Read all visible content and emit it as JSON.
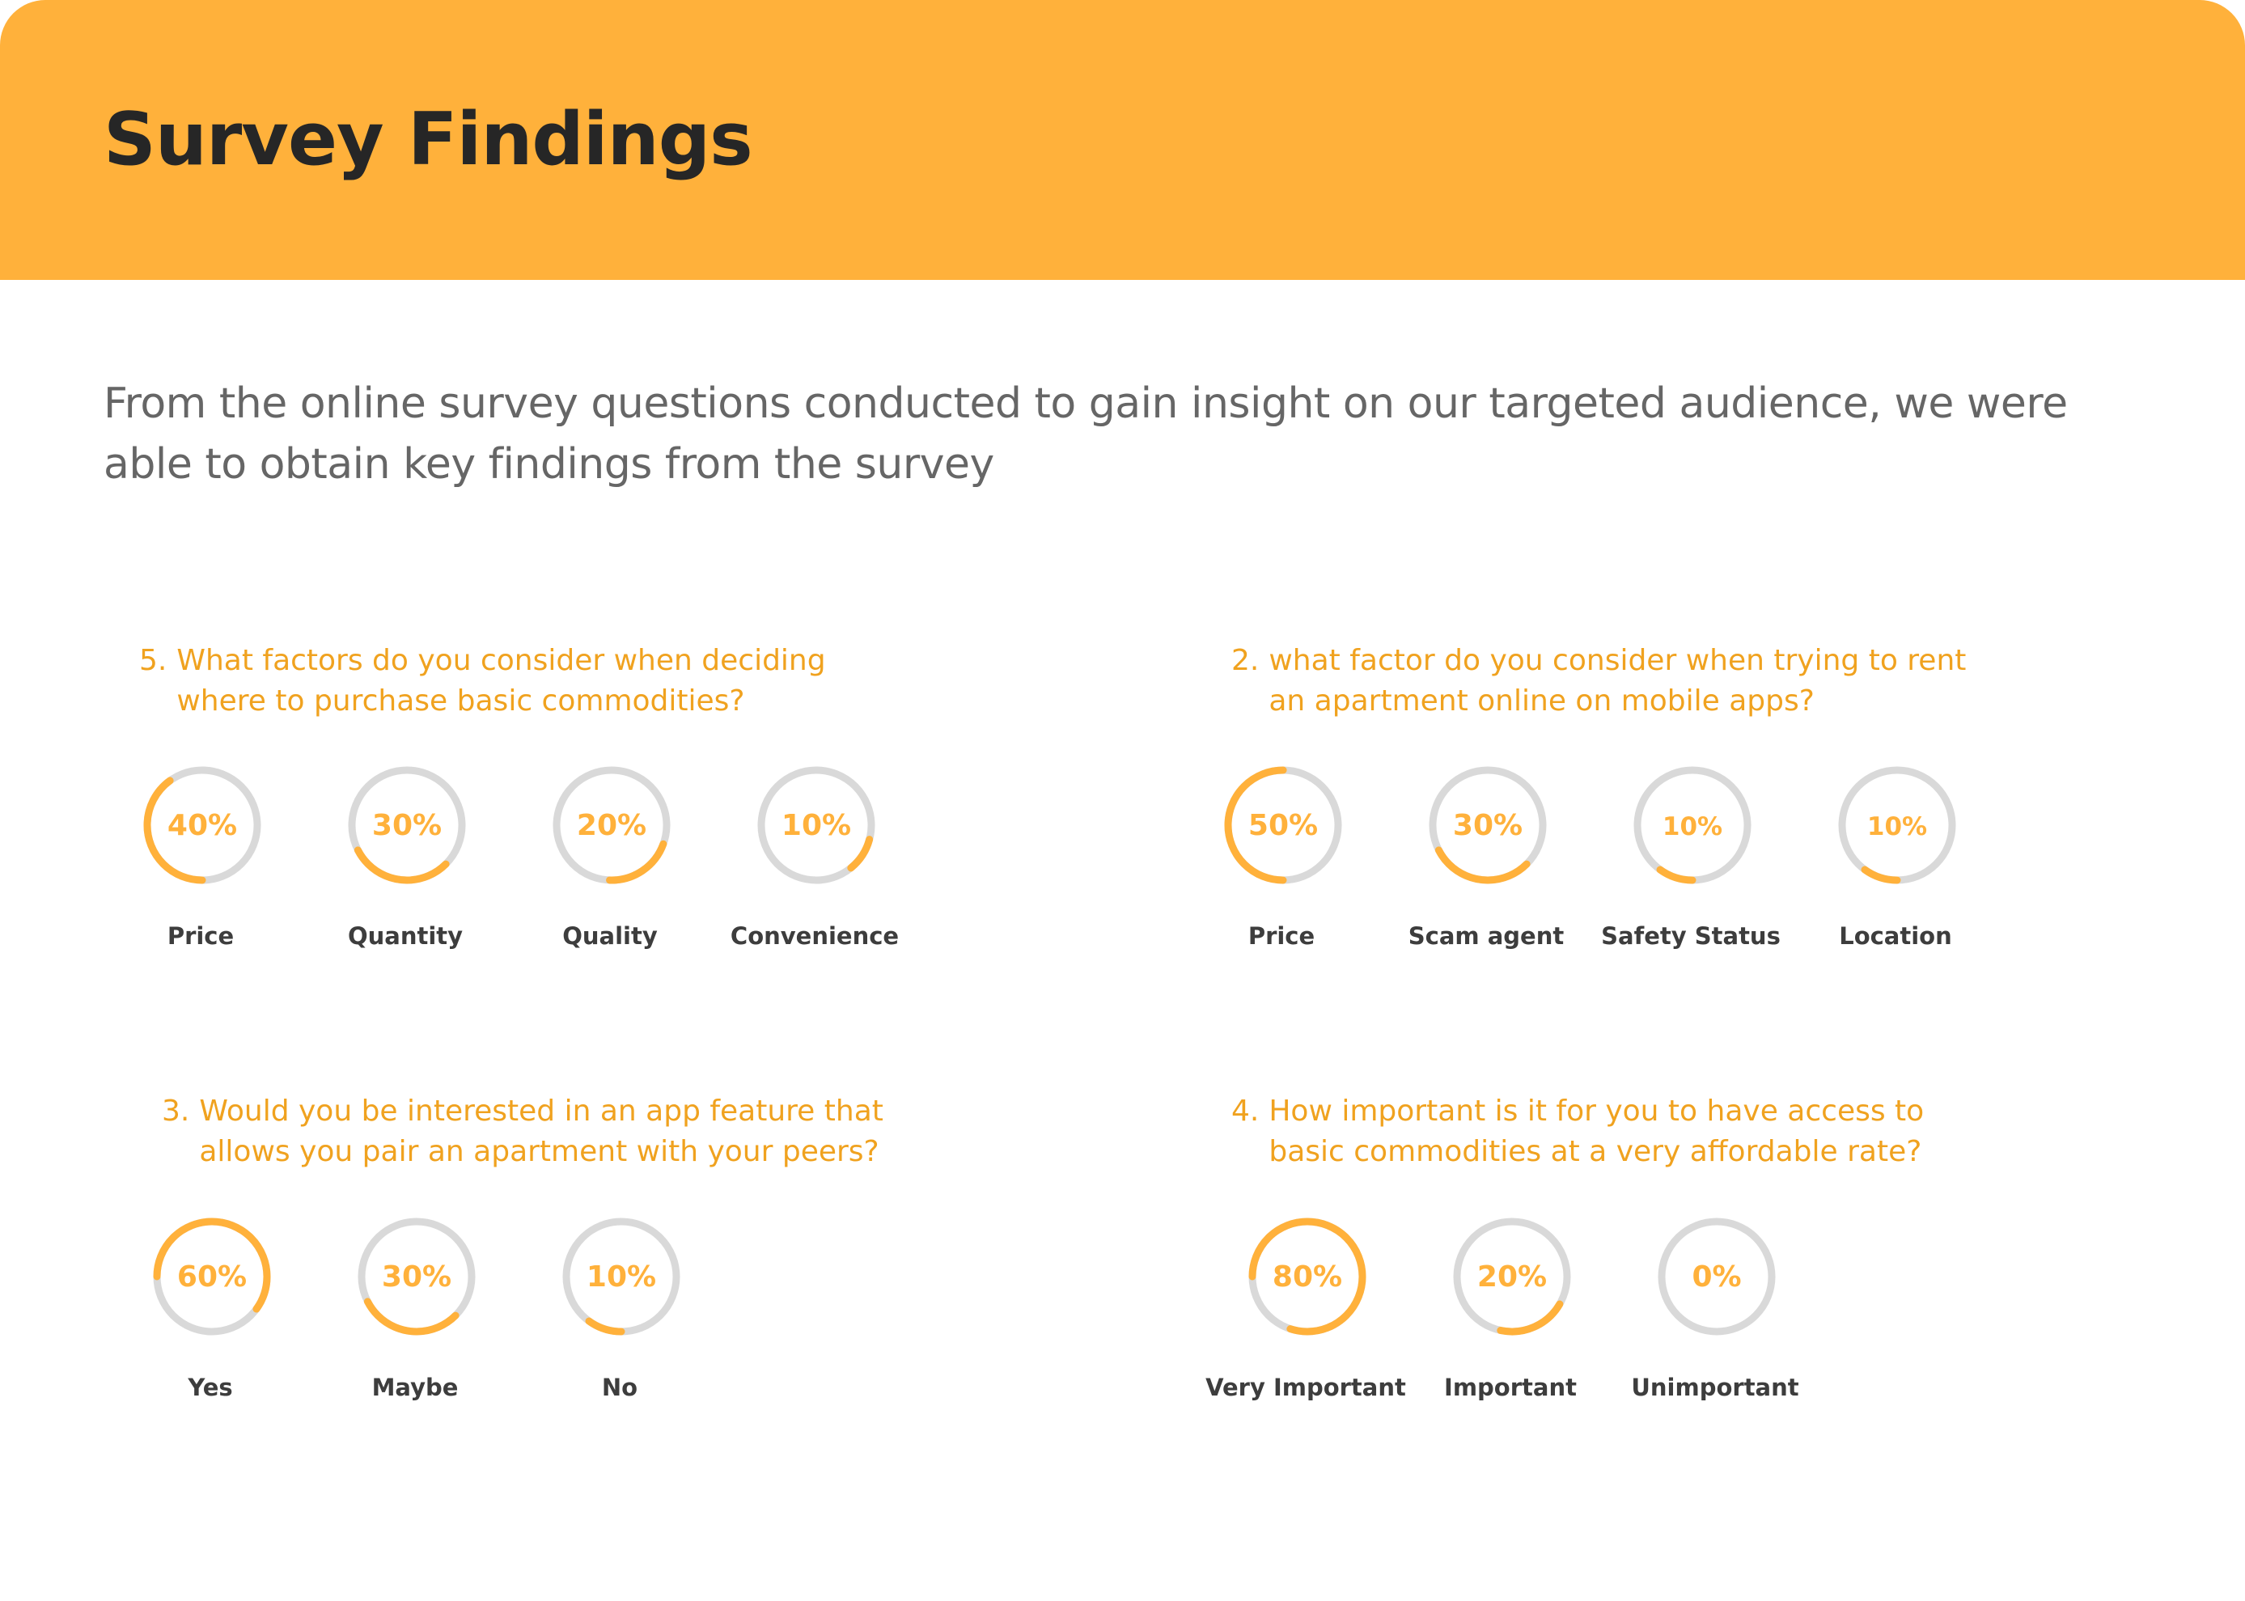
{
  "header": {
    "title": "Survey Findings",
    "color": "#ffb13b"
  },
  "intro": "From the online survey questions conducted to gain insight on our targeted audience, we were able to obtain key findings from the survey",
  "colors": {
    "accent": "#ffb13b",
    "question": "#f0a21f",
    "ring_track": "#d9d9d9"
  },
  "questions": [
    {
      "number": "5.",
      "text": "What factors do you consider when deciding where to purchase basic commodities?",
      "stats": [
        {
          "percent_label": "40%",
          "value": 40,
          "label": "Price"
        },
        {
          "percent_label": "30%",
          "value": 30,
          "label": "Quantity"
        },
        {
          "percent_label": "20%",
          "value": 20,
          "label": "Quality"
        },
        {
          "percent_label": "10%",
          "value": 10,
          "label": "Convenience"
        }
      ]
    },
    {
      "number": "2.",
      "text": "what factor do you consider when  trying to rent an apartment online on mobile apps?",
      "stats": [
        {
          "percent_label": "50%",
          "value": 50,
          "label": "Price"
        },
        {
          "percent_label": "30%",
          "value": 30,
          "label": "Scam agent"
        },
        {
          "percent_label": "10%",
          "value": 10,
          "label": "Safety Status"
        },
        {
          "percent_label": "10%",
          "value": 10,
          "label": "Location"
        }
      ]
    },
    {
      "number": "3.",
      "text": "Would you be interested in an app feature that allows you pair an apartment with your peers?",
      "stats": [
        {
          "percent_label": "60%",
          "value": 60,
          "label": "Yes"
        },
        {
          "percent_label": "30%",
          "value": 30,
          "label": "Maybe"
        },
        {
          "percent_label": "10%",
          "value": 10,
          "label": "No"
        }
      ]
    },
    {
      "number": "4.",
      "text": "How important is it for you to have access to basic commodities at a very affordable rate?",
      "stats": [
        {
          "percent_label": "80%",
          "value": 80,
          "label": "Very Important"
        },
        {
          "percent_label": "20%",
          "value": 20,
          "label": "Important"
        },
        {
          "percent_label": "0%",
          "value": 0,
          "label": "Unimportant"
        }
      ]
    }
  ]
}
